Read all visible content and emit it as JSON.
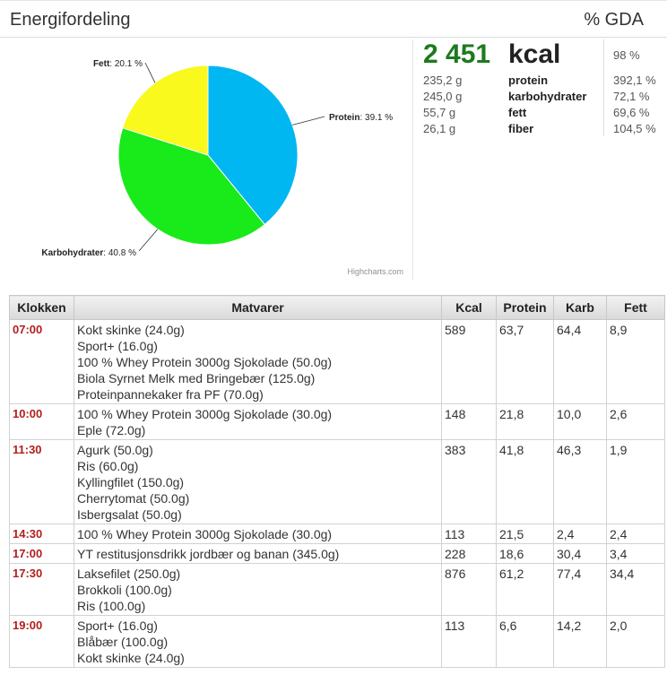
{
  "header": {
    "title": "Energifordeling",
    "gda_label": "% GDA"
  },
  "chart_data": {
    "type": "pie",
    "credit": "Highcharts.com",
    "slices": [
      {
        "name": "Protein",
        "value": 39.1,
        "label": "39.1 %",
        "color": "#00b7f2"
      },
      {
        "name": "Karbohydrater",
        "value": 40.8,
        "label": "40.8 %",
        "color": "#19ea19"
      },
      {
        "name": "Fett",
        "value": 20.1,
        "label": "20.1 %",
        "color": "#f9f91e"
      }
    ]
  },
  "summary": {
    "kcal_value": "2 451",
    "kcal_unit": "kcal",
    "kcal_pct": "98 %",
    "nutrients": [
      {
        "amount": "235,2 g",
        "label": "protein",
        "pct": "392,1 %"
      },
      {
        "amount": "245,0 g",
        "label": "karbohydrater",
        "pct": "72,1 %"
      },
      {
        "amount": "55,7 g",
        "label": "fett",
        "pct": "69,6 %"
      },
      {
        "amount": "26,1 g",
        "label": "fiber",
        "pct": "104,5 %"
      }
    ]
  },
  "table": {
    "columns": [
      "Klokken",
      "Matvarer",
      "Kcal",
      "Protein",
      "Karb",
      "Fett"
    ],
    "rows": [
      {
        "time": "07:00",
        "foods": [
          "Kokt skinke (24.0g)",
          "Sport+ (16.0g)",
          "100 % Whey Protein 3000g Sjokolade (50.0g)",
          "Biola Syrnet Melk med Bringebær (125.0g)",
          "Proteinpannekaker fra PF (70.0g)"
        ],
        "kcal": "589",
        "protein": "63,7",
        "karb": "64,4",
        "fett": "8,9"
      },
      {
        "time": "10:00",
        "foods": [
          "100 % Whey Protein 3000g Sjokolade (30.0g)",
          "Eple (72.0g)"
        ],
        "kcal": "148",
        "protein": "21,8",
        "karb": "10,0",
        "fett": "2,6"
      },
      {
        "time": "11:30",
        "foods": [
          "Agurk (50.0g)",
          "Ris (60.0g)",
          "Kyllingfilet (150.0g)",
          "Cherrytomat (50.0g)",
          "Isbergsalat (50.0g)"
        ],
        "kcal": "383",
        "protein": "41,8",
        "karb": "46,3",
        "fett": "1,9"
      },
      {
        "time": "14:30",
        "foods": [
          "100 % Whey Protein 3000g Sjokolade (30.0g)"
        ],
        "kcal": "113",
        "protein": "21,5",
        "karb": "2,4",
        "fett": "2,4"
      },
      {
        "time": "17:00",
        "foods": [
          "YT restitusjonsdrikk jordbær og banan (345.0g)"
        ],
        "kcal": "228",
        "protein": "18,6",
        "karb": "30,4",
        "fett": "3,4"
      },
      {
        "time": "17:30",
        "foods": [
          "Laksefilet (250.0g)",
          "Brokkoli (100.0g)",
          "Ris (100.0g)"
        ],
        "kcal": "876",
        "protein": "61,2",
        "karb": "77,4",
        "fett": "34,4"
      },
      {
        "time": "19:00",
        "foods": [
          "Sport+ (16.0g)",
          "Blåbær (100.0g)",
          "Kokt skinke (24.0g)"
        ],
        "kcal": "113",
        "protein": "6,6",
        "karb": "14,2",
        "fett": "2,0"
      }
    ]
  }
}
